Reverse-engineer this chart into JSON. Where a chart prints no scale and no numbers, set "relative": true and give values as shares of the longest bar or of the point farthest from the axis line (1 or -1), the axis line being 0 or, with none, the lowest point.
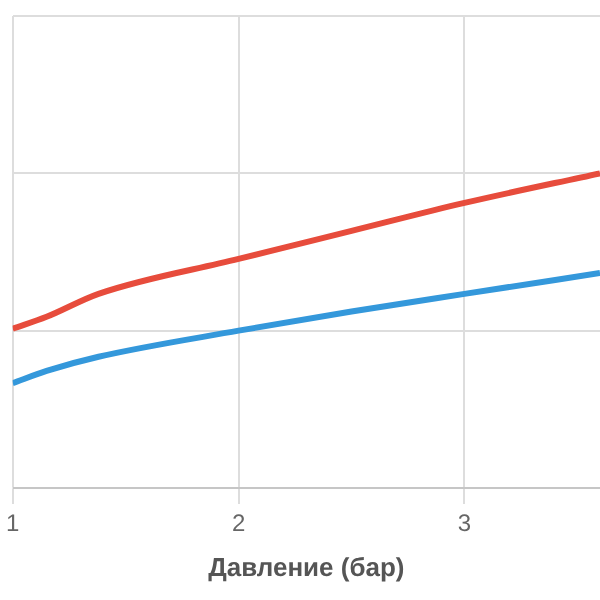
{
  "chart_data": {
    "type": "line",
    "xlabel": "Давление (бар)",
    "relative": true,
    "x": [
      1,
      1.15,
      1.38,
      2,
      2.5,
      3,
      3.6
    ],
    "series": [
      {
        "color": "#e74c3c",
        "values": [
          0.506,
          0.544,
          0.617,
          0.728,
          0.817,
          0.906,
          1
        ]
      },
      {
        "color": "#3498db",
        "values": [
          0.333,
          0.372,
          0.417,
          0.5,
          0.561,
          0.617,
          0.683
        ]
      }
    ],
    "xlim": [
      1,
      3.6
    ],
    "xticks": [
      1,
      2,
      3
    ],
    "grid": true,
    "legend": false,
    "marker": "none",
    "line_style": "solid"
  }
}
